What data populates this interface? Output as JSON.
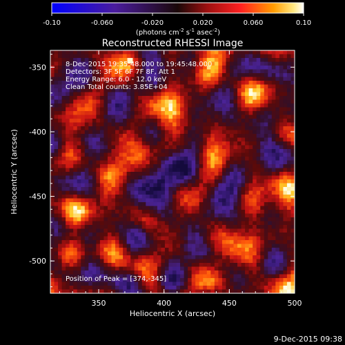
{
  "chart_data": {
    "type": "heatmap",
    "title": "Reconstructed RHESSI Image",
    "xlabel": "Heliocentric X (arcsec)",
    "ylabel": "Heliocentric Y (arcsec)",
    "xlim": [
      313,
      500
    ],
    "ylim": [
      -525,
      -337
    ],
    "x_ticks": [
      350,
      400,
      450,
      500
    ],
    "y_ticks": [
      -350,
      -400,
      -450,
      -500
    ],
    "colorbar": {
      "range": [
        -0.1,
        0.1
      ],
      "ticks": [
        "-0.10",
        "-0.060",
        "-0.020",
        "0.020",
        "0.060",
        "0.10"
      ],
      "label_parts": [
        "(photons cm",
        "-2",
        " s",
        "-1",
        " asec",
        "-2",
        ")"
      ]
    },
    "annotations": [
      "8-Dec-2015 19:35:48.000 to 19:45:48.000",
      "Detectors: 3F 5F 6F 7F 8F, Att 1",
      "Energy Range: 6.0 - 12.0 keV",
      "Clean    Total counts: 3.85E+04"
    ],
    "peak_label": "Position of Peak = [374,-345]",
    "peak": [
      374,
      -345
    ],
    "grid_size": 64,
    "colormap": "red-temperature",
    "footer_date": "9-Dec-2015 09:38"
  }
}
